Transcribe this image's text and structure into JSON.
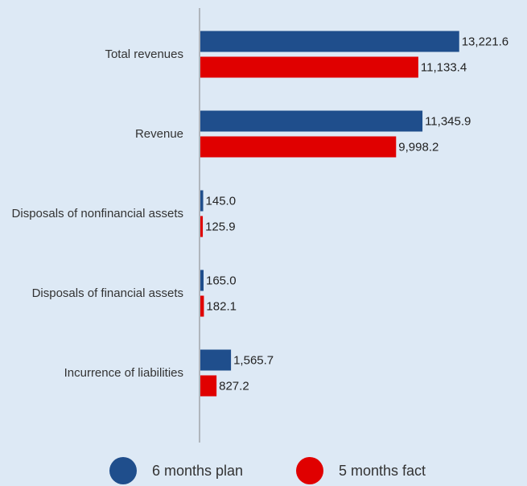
{
  "chart_data": {
    "type": "bar",
    "orientation": "horizontal",
    "categories": [
      "Total revenues",
      "Revenue",
      "Disposals of nonfinancial assets",
      "Disposals of financial assets",
      "Incurrence of liabilities"
    ],
    "series": [
      {
        "name": "6 months plan",
        "color": "#1f4e8c",
        "values": [
          13221.6,
          11345.9,
          145.0,
          165.0,
          1565.7
        ],
        "value_labels": [
          "13,221.6",
          "11,345.9",
          "145.0",
          "165.0",
          "1,565.7"
        ]
      },
      {
        "name": "5 months fact",
        "color": "#e00000",
        "values": [
          11133.4,
          9998.2,
          125.9,
          182.1,
          827.2
        ],
        "value_labels": [
          "11,133.4",
          "9,998.2",
          "125.9",
          "182.1",
          "827.2"
        ]
      }
    ],
    "xlim": [
      0,
      15000
    ],
    "legend": "bottom"
  }
}
